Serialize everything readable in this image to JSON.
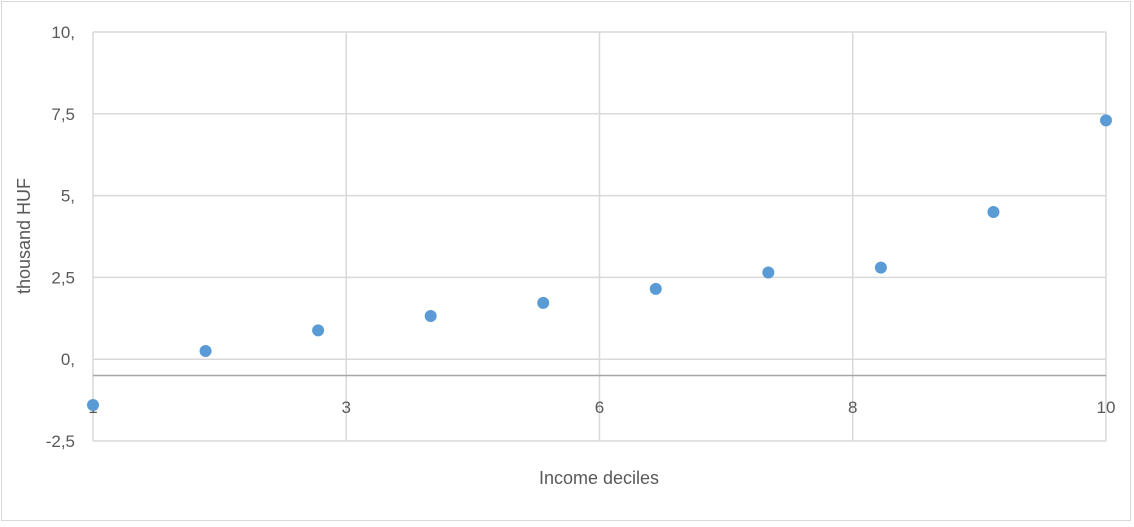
{
  "chart_data": {
    "type": "scatter",
    "title": "",
    "xlabel": "Income deciles",
    "ylabel": "thousand  HUF",
    "x_tick_labels": [
      "1",
      "3",
      "6",
      "8",
      "10"
    ],
    "y_tick_labels": [
      "10,",
      "7,5",
      "5,",
      "2,5",
      "0,",
      "-2,5"
    ],
    "x_values": [
      1,
      2,
      3,
      4,
      5,
      6,
      7,
      8,
      9,
      10
    ],
    "y_values": [
      -1.4,
      0.25,
      0.88,
      1.32,
      1.72,
      2.15,
      2.65,
      2.8,
      4.5,
      7.3
    ],
    "point_color": "#5b9bd5",
    "grid": true,
    "legend": "none"
  }
}
